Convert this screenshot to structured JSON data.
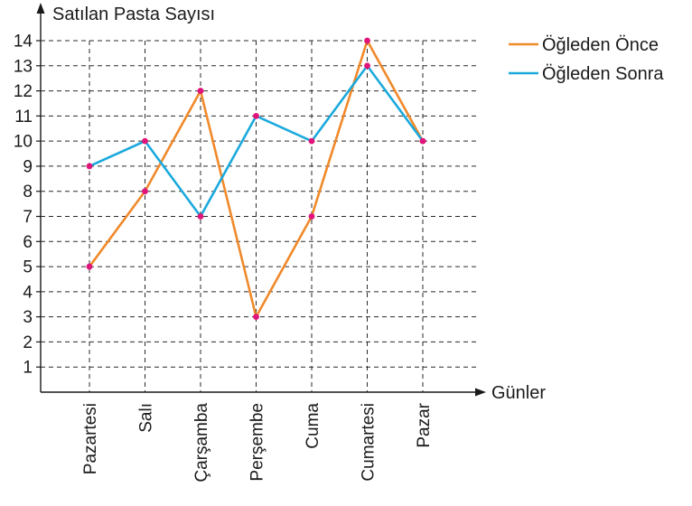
{
  "chart_data": {
    "type": "line",
    "ylabel": "Satılan Pasta Sayısı",
    "xlabel": "Günler",
    "categories": [
      "Pazartesi",
      "Salı",
      "Çarşamba",
      "Perşembe",
      "Cuma",
      "Cumartesi",
      "Pazar"
    ],
    "y_ticks": [
      "1",
      "2",
      "3",
      "4",
      "5",
      "6",
      "7",
      "8",
      "9",
      "10",
      "11",
      "12",
      "13",
      "14"
    ],
    "ylim": [
      0,
      14
    ],
    "grid": true,
    "legend_position": "top-right",
    "series": [
      {
        "name": "Öğleden Önce",
        "color": "#f0892a",
        "values": [
          5,
          8,
          12,
          3,
          7,
          14,
          10
        ]
      },
      {
        "name": "Öğleden Sonra",
        "color": "#1ba9dc",
        "values": [
          9,
          10,
          7,
          11,
          10,
          13,
          10
        ]
      }
    ],
    "marker_color": "#e0157a"
  }
}
